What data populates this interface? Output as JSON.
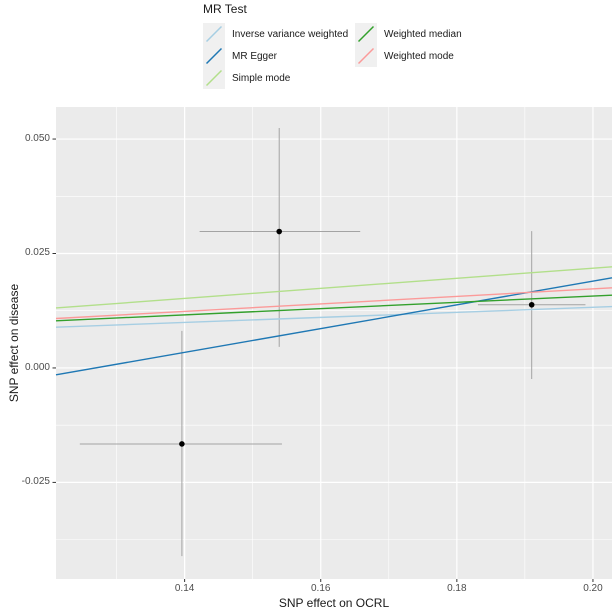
{
  "chart_data": {
    "type": "scatter",
    "title": "",
    "xlabel": "SNP effect on OCRL",
    "ylabel": "SNP effect on disease",
    "xlim": [
      0.1211,
      0.2028
    ],
    "ylim": [
      -0.0461,
      0.057
    ],
    "xticks": [
      0.14,
      0.16,
      0.18,
      0.2
    ],
    "xtick_labels": [
      "0.14",
      "0.16",
      "0.18",
      "0.20"
    ],
    "yticks": [
      0.05,
      0.025,
      0.0,
      -0.025
    ],
    "ytick_labels": [
      "0.050",
      "0.025",
      "0.000",
      "-0.025"
    ],
    "x_minor_gridlines": [
      0.13,
      0.15,
      0.17,
      0.19
    ],
    "y_minor_gridlines": [
      0.0375,
      0.0125,
      -0.0125,
      -0.0375
    ],
    "grid": "on",
    "points": [
      {
        "x": 0.1539,
        "y": 0.0298,
        "x_lo": 0.1422,
        "x_hi": 0.1658,
        "y_lo": 0.0046,
        "y_hi": 0.0524
      },
      {
        "x": 0.191,
        "y": 0.0138,
        "x_lo": 0.1831,
        "x_hi": 0.1989,
        "y_lo": -0.0024,
        "y_hi": 0.0299
      },
      {
        "x": 0.1396,
        "y": -0.0166,
        "x_lo": 0.1246,
        "x_hi": 0.1543,
        "y_lo": -0.0411,
        "y_hi": 0.0081
      }
    ],
    "regression_lines": [
      {
        "name": "Inverse variance weighted",
        "color": "#A6CEE3",
        "y_at_xmin": 0.0089,
        "y_at_xmax": 0.0134
      },
      {
        "name": "MR Egger",
        "color": "#1F78B4",
        "y_at_xmin": -0.0015,
        "y_at_xmax": 0.0197
      },
      {
        "name": "Simple mode",
        "color": "#B2DF8A",
        "y_at_xmin": 0.0131,
        "y_at_xmax": 0.0221
      },
      {
        "name": "Weighted median",
        "color": "#33A02C",
        "y_at_xmin": 0.0103,
        "y_at_xmax": 0.0159
      },
      {
        "name": "Weighted mode",
        "color": "#FB9A99",
        "y_at_xmin": 0.0108,
        "y_at_xmax": 0.0175
      }
    ],
    "legend": {
      "title": "MR Test",
      "position": "top",
      "entries": [
        {
          "label": "Inverse variance weighted",
          "color": "#A6CEE3"
        },
        {
          "label": "MR Egger",
          "color": "#1F78B4"
        },
        {
          "label": "Simple mode",
          "color": "#B2DF8A"
        },
        {
          "label": "Weighted median",
          "color": "#33A02C"
        },
        {
          "label": "Weighted mode",
          "color": "#FB9A99"
        }
      ]
    },
    "colors": {
      "panel_bg": "#EBEBEB",
      "grid": "#FFFFFF",
      "point": "#000000",
      "errorbar": "#A3A3A3",
      "tick_mark": "#333333"
    }
  }
}
